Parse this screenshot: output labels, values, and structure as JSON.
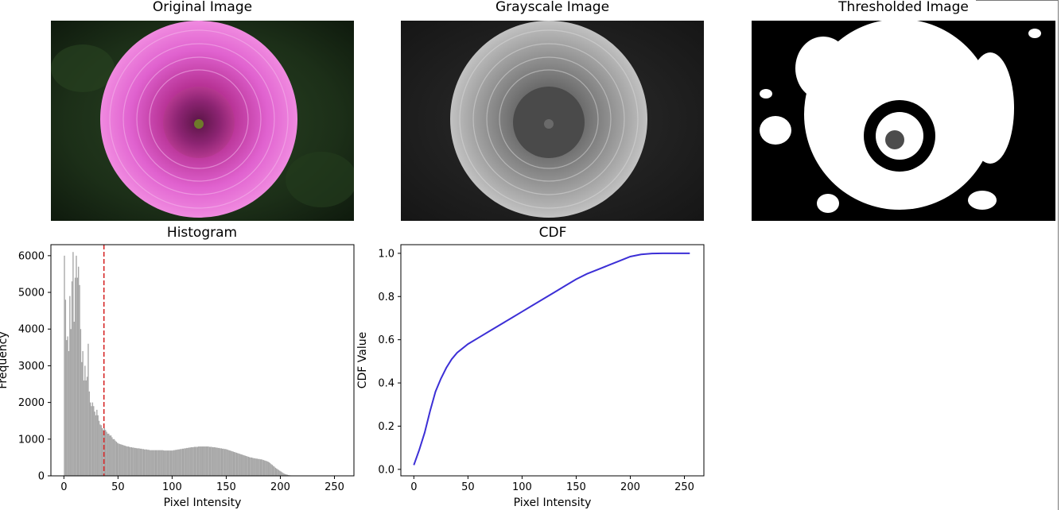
{
  "panels": {
    "original_title": "Original Image",
    "grayscale_title": "Grayscale Image",
    "thresholded_title": "Thresholded Image"
  },
  "colors": {
    "hist_bar": "#a6a6a6",
    "threshold_line": "#d62728",
    "cdf_line": "#3c2fd6",
    "petal": "#d94fc6",
    "background_leaf": "#1c2f18"
  },
  "chart_data": [
    {
      "type": "bar",
      "title": "Histogram",
      "xlabel": "Pixel Intensity",
      "ylabel": "Frequency",
      "xlim": [
        -12,
        268
      ],
      "ylim": [
        0,
        6300
      ],
      "xticks": [
        0,
        50,
        100,
        150,
        200,
        250
      ],
      "yticks": [
        0,
        1000,
        2000,
        3000,
        4000,
        5000,
        6000
      ],
      "threshold": 37,
      "values": [
        6000,
        4800,
        3700,
        3800,
        3400,
        4900,
        4000,
        5300,
        6100,
        4200,
        5400,
        6000,
        5400,
        5700,
        5200,
        4000,
        3100,
        3400,
        2600,
        3000,
        2600,
        2700,
        3600,
        2300,
        2000,
        1900,
        2000,
        1900,
        1750,
        1650,
        1800,
        1650,
        1500,
        1400,
        1380,
        1300,
        1250,
        1300,
        1250,
        1200,
        1150,
        1150,
        1100,
        1100,
        1050,
        1000,
        1000,
        960,
        930,
        900,
        880,
        870,
        860,
        850,
        840,
        830,
        820,
        810,
        800,
        800,
        790,
        780,
        780,
        770,
        770,
        760,
        760,
        750,
        750,
        750,
        740,
        740,
        730,
        730,
        720,
        720,
        720,
        710,
        710,
        700,
        700,
        700,
        700,
        700,
        700,
        700,
        700,
        700,
        700,
        700,
        700,
        700,
        690,
        690,
        690,
        690,
        690,
        690,
        690,
        690,
        690,
        700,
        700,
        710,
        710,
        720,
        720,
        730,
        730,
        740,
        740,
        750,
        750,
        760,
        760,
        770,
        770,
        780,
        780,
        780,
        790,
        790,
        790,
        790,
        800,
        800,
        800,
        800,
        800,
        800,
        800,
        800,
        800,
        800,
        790,
        790,
        790,
        780,
        780,
        780,
        770,
        770,
        760,
        760,
        750,
        750,
        740,
        740,
        730,
        730,
        720,
        710,
        700,
        690,
        680,
        670,
        660,
        650,
        640,
        630,
        620,
        610,
        600,
        590,
        580,
        570,
        560,
        550,
        540,
        530,
        520,
        510,
        500,
        500,
        490,
        480,
        480,
        470,
        470,
        460,
        460,
        450,
        450,
        440,
        430,
        420,
        410,
        400,
        390,
        370,
        350,
        320,
        300,
        270,
        250,
        220,
        200,
        180,
        160,
        140,
        120,
        100,
        80,
        60,
        50,
        40,
        30,
        20,
        15,
        12,
        10,
        8,
        6,
        5,
        4,
        3,
        2,
        2,
        1,
        1,
        1,
        1,
        0,
        0,
        0,
        0,
        0,
        0,
        0,
        0,
        0,
        0,
        0,
        0,
        0,
        0,
        0,
        0,
        0,
        0,
        0,
        0,
        0,
        0,
        0,
        0,
        0,
        0,
        0,
        0,
        0,
        0,
        0,
        0,
        0,
        0,
        0,
        0
      ]
    },
    {
      "type": "line",
      "title": "CDF",
      "xlabel": "Pixel Intensity",
      "ylabel": "CDF Value",
      "xlim": [
        -12,
        268
      ],
      "ylim": [
        -0.03,
        1.04
      ],
      "xticks": [
        0,
        50,
        100,
        150,
        200,
        250
      ],
      "yticks": [
        0.0,
        0.2,
        0.4,
        0.6,
        0.8,
        1.0
      ],
      "ytick_labels": [
        "0.0",
        "0.2",
        "0.4",
        "0.6",
        "0.8",
        "1.0"
      ],
      "x": [
        0,
        5,
        10,
        15,
        20,
        25,
        30,
        35,
        40,
        50,
        60,
        70,
        80,
        90,
        100,
        110,
        120,
        130,
        140,
        150,
        160,
        170,
        180,
        190,
        200,
        210,
        220,
        230,
        240,
        255
      ],
      "y": [
        0.02,
        0.09,
        0.17,
        0.27,
        0.36,
        0.42,
        0.47,
        0.51,
        0.54,
        0.58,
        0.61,
        0.64,
        0.67,
        0.7,
        0.73,
        0.76,
        0.79,
        0.82,
        0.85,
        0.88,
        0.905,
        0.925,
        0.945,
        0.965,
        0.985,
        0.995,
        0.999,
        1.0,
        1.0,
        1.0
      ]
    }
  ]
}
